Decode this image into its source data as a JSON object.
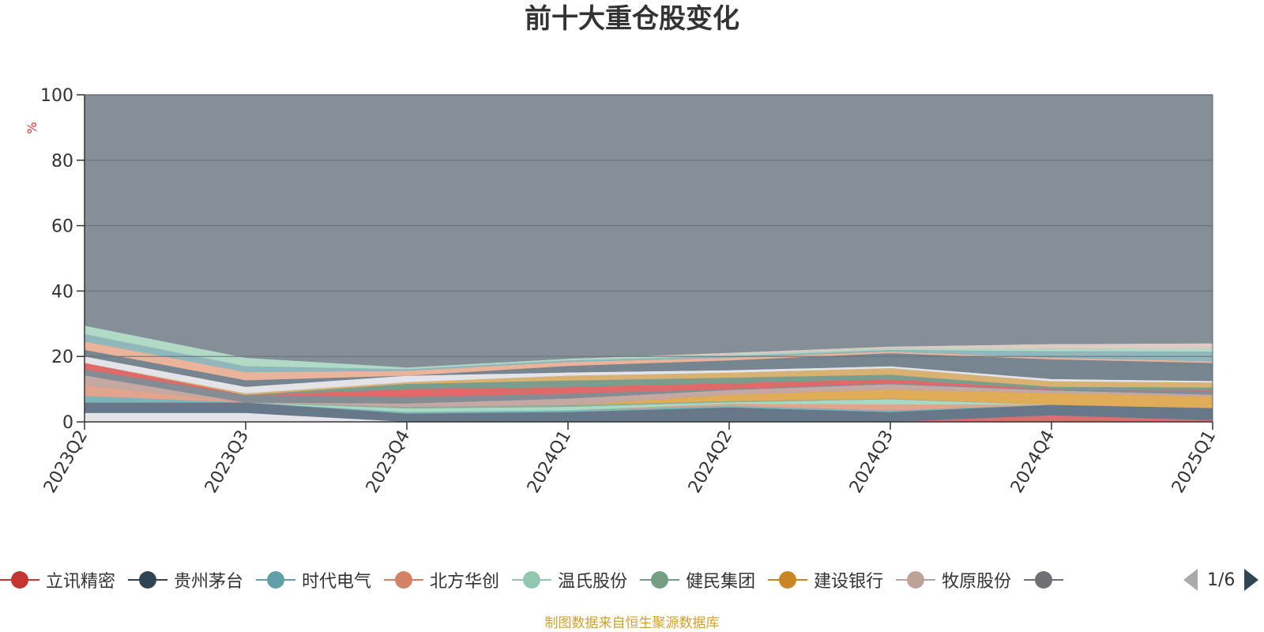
{
  "chart_data": {
    "type": "area",
    "stacked": true,
    "title": "前十大重仓股变化",
    "unit": "%",
    "ylim": [
      0,
      100
    ],
    "yticks": [
      0,
      20,
      40,
      60,
      80,
      100
    ],
    "grid": true,
    "legend_position": "bottom",
    "x": [
      "2023Q2",
      "2023Q3",
      "2023Q4",
      "2024Q1",
      "2024Q2",
      "2024Q3",
      "2024Q4",
      "2025Q1"
    ],
    "series": [
      {
        "name": "",
        "color": "#e4e4ea",
        "values": [
          2.7,
          2.7,
          0,
          0,
          0,
          0,
          0,
          0
        ]
      },
      {
        "name": "立讯精密",
        "color": "#d96f6e",
        "values": [
          0,
          0,
          0,
          0,
          0,
          0,
          2,
          0.5
        ]
      },
      {
        "name": "贵州茅台",
        "color": "#66788a",
        "values": [
          3.2,
          3.2,
          2.5,
          3,
          4.4,
          3,
          3.2,
          3.7
        ]
      },
      {
        "name": "时代电气",
        "color": "#7db5ba",
        "values": [
          2,
          0,
          0.5,
          0.5,
          0.5,
          0.5,
          0,
          0
        ]
      },
      {
        "name": "北方华创",
        "color": "#e2a48c",
        "values": [
          3.3,
          0,
          0,
          0,
          0.6,
          1.8,
          0,
          0
        ]
      },
      {
        "name": "温氏股份",
        "color": "#a7d9c3",
        "values": [
          0,
          0,
          1.1,
          1.1,
          0.5,
          1.6,
          0,
          0
        ]
      },
      {
        "name": "健民集团",
        "color": "#8eae9b",
        "values": [
          0,
          0,
          0.5,
          0.5,
          0.3,
          0.2,
          0,
          0
        ]
      },
      {
        "name": "建设银行",
        "color": "#e0ac58",
        "values": [
          0,
          0,
          0,
          0,
          2,
          2.8,
          3.6,
          3.6
        ]
      },
      {
        "name": "牧原股份",
        "color": "#c5a8a2",
        "values": [
          3,
          0,
          1,
          2,
          1.4,
          1.6,
          0.8,
          0.5
        ]
      },
      {
        "name": "",
        "color": "#848c94",
        "values": [
          1.8,
          2.3,
          2,
          1.5,
          0.3,
          0.3,
          0.2,
          1.2
        ]
      },
      {
        "name": "",
        "color": "#e06a6a",
        "values": [
          2,
          0,
          2.4,
          2,
          1.8,
          1.2,
          0.2,
          0.2
        ]
      },
      {
        "name": "",
        "color": "#7b9d8e",
        "values": [
          0,
          0,
          1.6,
          2,
          1.7,
          1.4,
          0.7,
          0.8
        ]
      },
      {
        "name": "",
        "color": "#d9b272",
        "values": [
          0,
          0.5,
          0.5,
          1.5,
          1.5,
          2,
          1.7,
          1.5
        ]
      },
      {
        "name": "",
        "color": "#e3e3e8",
        "values": [
          2,
          2,
          2,
          1,
          0.8,
          0.6,
          0.7,
          0.5
        ]
      },
      {
        "name": "",
        "color": "#76858f",
        "values": [
          2,
          2,
          0,
          2,
          3,
          4,
          6,
          5.5
        ]
      },
      {
        "name": "",
        "color": "#eab39a",
        "values": [
          2.6,
          2.5,
          1.5,
          1.2,
          0.8,
          0.5,
          0.5,
          0.5
        ]
      },
      {
        "name": "",
        "color": "#8fb7bc",
        "values": [
          2.2,
          1.8,
          0.5,
          0.5,
          0.5,
          0.5,
          2,
          3
        ]
      },
      {
        "name": "",
        "color": "#b1d9c5",
        "values": [
          2.6,
          2.6,
          0.5,
          0.5,
          0.5,
          0.5,
          0.8,
          1
        ]
      },
      {
        "name": "",
        "color": "#e0cbc3",
        "values": [
          0,
          0,
          0,
          0,
          0.5,
          0.5,
          1.4,
          1.5
        ]
      },
      {
        "name": "",
        "color": "#848f98",
        "values": [
          72.6,
          76.4,
          83.3,
          80.2,
          78.6,
          77.6,
          76.2,
          71.5
        ]
      }
    ]
  },
  "legend": {
    "items": [
      {
        "label": "立讯精密",
        "color": "#c23531"
      },
      {
        "label": "贵州茅台",
        "color": "#2f4554"
      },
      {
        "label": "时代电气",
        "color": "#61a0a8"
      },
      {
        "label": "北方华创",
        "color": "#d48265"
      },
      {
        "label": "温氏股份",
        "color": "#91c7ae"
      },
      {
        "label": "健民集团",
        "color": "#749f83"
      },
      {
        "label": "建设银行",
        "color": "#ca8622"
      },
      {
        "label": "牧原股份",
        "color": "#bda29a"
      },
      {
        "label": "",
        "color": "#6e7074"
      }
    ],
    "pager": "1/6"
  },
  "footer": "制图数据来自恒生聚源数据库"
}
